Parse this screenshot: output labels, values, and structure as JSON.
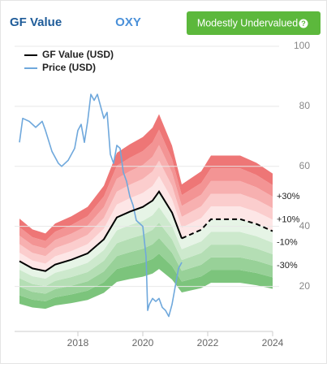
{
  "header": {
    "title": "GF Value",
    "ticker": "OXY",
    "rating": "Modestly Undervalued"
  },
  "chart_data": {
    "type": "line",
    "xlim": [
      2016,
      2024
    ],
    "ylim": [
      5,
      100
    ],
    "xticks": [
      2018,
      2020,
      2022,
      2024
    ],
    "yticks": [
      20,
      40,
      60,
      80,
      100
    ],
    "grid": true,
    "estimate_start": 2021.2,
    "bands": {
      "levels": [
        -50,
        -40,
        -30,
        -20,
        -10,
        0,
        10,
        20,
        30,
        40,
        50
      ],
      "colors": [
        "#7cc47c",
        "#98d198",
        "#b4deb4",
        "#cde9cd",
        "#e6f4e6",
        "#fde6e6",
        "#fbcdcd",
        "#f7b0b0",
        "#f39494",
        "#ee7676"
      ]
    },
    "band_labels": [
      {
        "value": 30,
        "label": "+30%"
      },
      {
        "value": 10,
        "label": "+10%"
      },
      {
        "value": -10,
        "label": "-10%"
      },
      {
        "value": -30,
        "label": "-30%"
      }
    ],
    "series": [
      {
        "name": "GF Value (USD)",
        "color": "#000000",
        "x": [
          2016.2,
          2016.6,
          2017.0,
          2017.3,
          2017.8,
          2018.3,
          2018.8,
          2019.2,
          2019.6,
          2020.0,
          2020.3,
          2020.5,
          2020.9,
          2021.2,
          2021.8,
          2022.1,
          2023.0,
          2023.5,
          2024.0
        ],
        "values": [
          28.4,
          26,
          25.1,
          27.3,
          28.9,
          31,
          35.7,
          43,
          44.9,
          46.5,
          48.6,
          51.6,
          44.6,
          36,
          38.9,
          42.4,
          42.4,
          40.8,
          38.4
        ]
      },
      {
        "name": "Price (USD)",
        "color": "#6fa8dc",
        "x": [
          2016.2,
          2016.3,
          2016.5,
          2016.7,
          2016.9,
          2017.0,
          2017.2,
          2017.4,
          2017.5,
          2017.7,
          2017.9,
          2018.0,
          2018.1,
          2018.2,
          2018.3,
          2018.4,
          2018.5,
          2018.6,
          2018.7,
          2018.8,
          2018.9,
          2019.0,
          2019.1,
          2019.2,
          2019.3,
          2019.4,
          2019.5,
          2019.6,
          2019.7,
          2019.8,
          2019.9,
          2020.0,
          2020.1,
          2020.15,
          2020.2,
          2020.3,
          2020.4,
          2020.5,
          2020.6,
          2020.7,
          2020.8,
          2020.9,
          2021.0,
          2021.1,
          2021.2
        ],
        "values": [
          68,
          76,
          75,
          73,
          75,
          72,
          65,
          61,
          60,
          62,
          66,
          72,
          74,
          68,
          75,
          84,
          82,
          84,
          80,
          76,
          78,
          64,
          61,
          67,
          66,
          58,
          55,
          50,
          47,
          42,
          41,
          40,
          30,
          12,
          14,
          16,
          15,
          16,
          13,
          12,
          10,
          14,
          20,
          26,
          28
        ]
      }
    ]
  }
}
